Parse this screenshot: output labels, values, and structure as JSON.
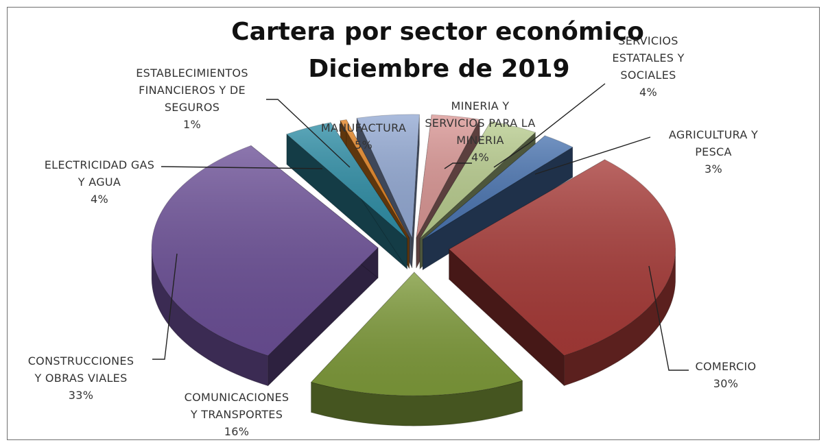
{
  "chart_data": {
    "type": "pie",
    "title": "Cartera por sector económico",
    "subtitle": "Diciembre de 2019",
    "style": "3d-exploded",
    "slices": [
      {
        "key": "mineria",
        "label": [
          "MINERIA Y",
          "SERVICIOS PARA  LA",
          "MINERIA"
        ],
        "pct_label": "4%",
        "value": 4,
        "color": "#d99694"
      },
      {
        "key": "servicios",
        "label": [
          "SERVICIOS",
          "ESTATALES  Y",
          "SOCIALES"
        ],
        "pct_label": "4%",
        "value": 4,
        "color": "#b8cc8e"
      },
      {
        "key": "agricultura",
        "label": [
          "AGRICULTURA  Y",
          "PESCA"
        ],
        "pct_label": "3%",
        "value": 3,
        "color": "#4a74b0"
      },
      {
        "key": "comercio",
        "label": [
          "COMERCIO"
        ],
        "pct_label": "30%",
        "value": 30,
        "color": "#a63a37"
      },
      {
        "key": "comunicaciones",
        "label": [
          "COMUNICACIONES",
          "Y TRANSPORTES"
        ],
        "pct_label": "16%",
        "value": 16,
        "color": "#7e9a3a"
      },
      {
        "key": "construcciones",
        "label": [
          "CONSTRUCCIONES",
          "Y OBRAS VIALES"
        ],
        "pct_label": "33%",
        "value": 33,
        "color": "#6b4f96"
      },
      {
        "key": "electricidad",
        "label": [
          "ELECTRICIDAD  GAS",
          "Y AGUA"
        ],
        "pct_label": "4%",
        "value": 4,
        "color": "#2f8ea6"
      },
      {
        "key": "financieros",
        "label": [
          "ESTABLECIMIENTOS",
          "FINANCIEROS  Y DE",
          "SEGUROS"
        ],
        "pct_label": "1%",
        "value": 1,
        "color": "#e0801f"
      },
      {
        "key": "manufactura",
        "label": [
          "MANUFACTURA"
        ],
        "pct_label": "5%",
        "value": 5,
        "color": "#93a9d3"
      }
    ]
  }
}
